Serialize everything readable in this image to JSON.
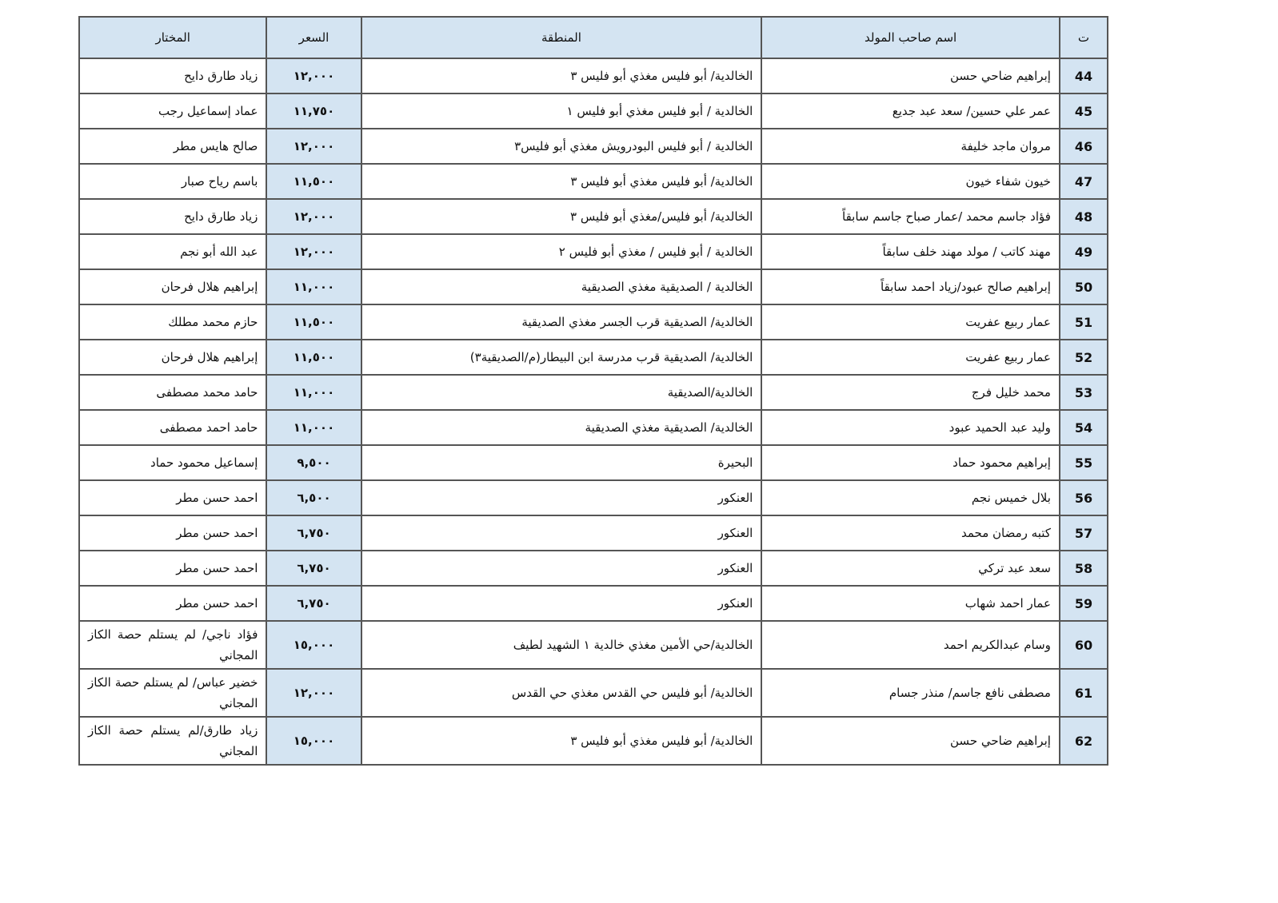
{
  "headers": {
    "num": "ت",
    "name": "اسم صاحب المولد",
    "area": "المنطقة",
    "price": "السعر",
    "mukhtar": "المختار"
  },
  "colors": {
    "header_bg": "#d4e4f2",
    "border": "#555555"
  },
  "rows": [
    {
      "num": "44",
      "name": "إبراهيم ضاحي حسن",
      "area": "الخالدية/ أبو فليس مغذي أبو فليس ٣",
      "price": "١٢,٠٠٠",
      "mukhtar": "زياد طارق دايح"
    },
    {
      "num": "45",
      "name": "عمر علي حسين/ سعد عبد جديع",
      "area": "الخالدية / أبو فليس مغذي أبو فليس ١",
      "price": "١١,٧٥٠",
      "mukhtar": "عماد إسماعيل رجب"
    },
    {
      "num": "46",
      "name": "مروان ماجد خليفة",
      "area": "الخالدية / أبو فليس البودرويش مغذي أبو فليس٣",
      "price": "١٢,٠٠٠",
      "mukhtar": "صالح هايس مطر"
    },
    {
      "num": "47",
      "name": "خيون شفاء خيون",
      "area": "الخالدية/ أبو فليس مغذي أبو فليس ٣",
      "price": "١١,٥٠٠",
      "mukhtar": "باسم رياح صبار"
    },
    {
      "num": "48",
      "name": "فؤاد جاسم محمد /عمار صباح جاسم سابقاً",
      "area": "الخالدية/ أبو فليس/مغذي أبو فليس ٣",
      "price": "١٢,٠٠٠",
      "mukhtar": "زياد طارق دايح"
    },
    {
      "num": "49",
      "name": "مهند كاتب / مولد مهند خلف سابقاً",
      "area": "الخالدية / أبو فليس / مغذي أبو فليس ٢",
      "price": "١٢,٠٠٠",
      "mukhtar": "عبد الله أبو نجم"
    },
    {
      "num": "50",
      "name": "إبراهيم صالح عبود/زياد احمد سابقاً",
      "area": "الخالدية / الصديقية مغذي الصديقية",
      "price": "١١,٠٠٠",
      "mukhtar": "إبراهيم هلال فرحان"
    },
    {
      "num": "51",
      "name": "عمار ربيع عفريت",
      "area": "الخالدية/ الصديقية قرب الجسر مغذي الصديقية",
      "price": "١١,٥٠٠",
      "mukhtar": "حازم محمد مطلك"
    },
    {
      "num": "52",
      "name": "عمار ربيع عفريت",
      "area": "الخالدية/ الصديقية قرب مدرسة ابن البيطار(م/الصديقية٣)",
      "price": "١١,٥٠٠",
      "mukhtar": "إبراهيم هلال فرحان"
    },
    {
      "num": "53",
      "name": "محمد خليل فرج",
      "area": "الخالدية/الصديقية",
      "price": "١١,٠٠٠",
      "mukhtar": "حامد محمد مصطفى"
    },
    {
      "num": "54",
      "name": "وليد عبد الحميد عبود",
      "area": "الخالدية/ الصديقية مغذي الصديقية",
      "price": "١١,٠٠٠",
      "mukhtar": "حامد احمد مصطفى"
    },
    {
      "num": "55",
      "name": "إبراهيم محمود حماد",
      "area": "البحيرة",
      "price": "٩,٥٠٠",
      "mukhtar": "إسماعيل محمود حماد"
    },
    {
      "num": "56",
      "name": "بلال خميس نجم",
      "area": "العنكور",
      "price": "٦,٥٠٠",
      "mukhtar": "احمد حسن مطر"
    },
    {
      "num": "57",
      "name": "كتبه رمضان محمد",
      "area": "العنكور",
      "price": "٦,٧٥٠",
      "mukhtar": "احمد حسن مطر"
    },
    {
      "num": "58",
      "name": "سعد عبد تركي",
      "area": "العنكور",
      "price": "٦,٧٥٠",
      "mukhtar": "احمد حسن مطر"
    },
    {
      "num": "59",
      "name": "عمار احمد شهاب",
      "area": "العنكور",
      "price": "٦,٧٥٠",
      "mukhtar": "احمد حسن مطر"
    },
    {
      "num": "60",
      "name": "وسام عبدالكريم احمد",
      "area": "الخالدية/حي الأمين مغذي خالدية ١ الشهيد لطيف",
      "price": "١٥,٠٠٠",
      "mukhtar": "فؤاد ناجي/ لم يستلم حصة الكاز المجاني"
    },
    {
      "num": "61",
      "name": "مصطفى نافع جاسم/ منذر جسام",
      "area": "الخالدية/ أبو فليس حي القدس مغذي حي القدس",
      "price": "١٢,٠٠٠",
      "mukhtar": "خضير عباس/ لم يستلم حصة الكاز المجاني"
    },
    {
      "num": "62",
      "name": "إبراهيم ضاحي حسن",
      "area": "الخالدية/ أبو فليس مغذي أبو فليس ٣",
      "price": "١٥,٠٠٠",
      "mukhtar": "زياد طارق/لم يستلم حصة الكاز المجاني"
    }
  ]
}
